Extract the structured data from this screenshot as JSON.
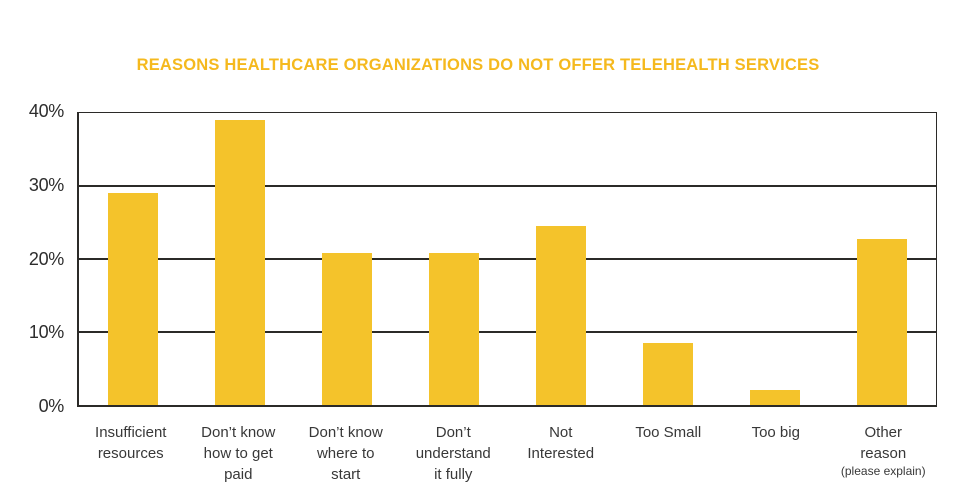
{
  "colors": {
    "background": "#ffffff",
    "title": "#F5B91E",
    "bar": "#F4C32B",
    "axis": "#2b2a28",
    "grid": "#2b2a28",
    "tick-label": "#2d2d2d",
    "category-label": "#383838"
  },
  "chart_data": {
    "type": "bar",
    "title": "REASONS HEALTHCARE ORGANIZATIONS DO NOT OFFER TELEHEALTH SERVICES",
    "categories": [
      "Insufficient resources",
      "Don’t know how to get paid",
      "Don’t know where to start",
      "Don’t understand it fully",
      "Not Interested",
      "Too Small",
      "Too big",
      "Other reason (please explain)"
    ],
    "category_lines": [
      [
        "Insufficient",
        "resources"
      ],
      [
        "Don’t know",
        "how to get",
        "paid"
      ],
      [
        "Don’t know",
        "where to",
        "start"
      ],
      [
        "Don’t",
        "understand",
        "it fully"
      ],
      [
        "Not",
        "Interested"
      ],
      [
        "Too Small"
      ],
      [
        "Too big"
      ],
      [
        "Other",
        "reason",
        "(please explain)"
      ]
    ],
    "values": [
      29,
      39,
      20.8,
      20.8,
      24.5,
      8.5,
      2,
      22.7
    ],
    "xlabel": "",
    "ylabel": "",
    "ylim": [
      0,
      40
    ],
    "ytick_step": 10,
    "ytick_labels": [
      "0%",
      "10%",
      "20%",
      "30%",
      "40%"
    ],
    "grid": true,
    "legend": false,
    "bar_color": "#F4C32B"
  }
}
